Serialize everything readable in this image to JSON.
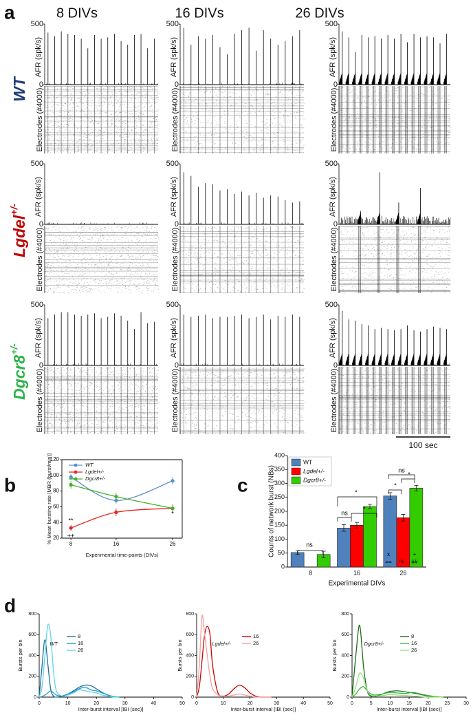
{
  "panel_labels": [
    "a",
    "b",
    "c",
    "d"
  ],
  "panel_a": {
    "columns": [
      "8 DIVs",
      "16 DIVs",
      "26 DIVs"
    ],
    "ylabel": "AFR (spk/s)",
    "raster_label": "Electrodes (#4000)",
    "ylim": [
      0,
      500
    ],
    "yticks": [
      0,
      500
    ],
    "xlim": [
      0,
      205
    ],
    "scale_bar": {
      "value": 100,
      "label": "100 sec"
    },
    "rows": [
      {
        "label": "WT",
        "color": "#1f3b73",
        "panels": [
          {
            "x": [
              6,
              18,
              30,
              42,
              54,
              66,
              78,
              90,
              102,
              114,
              126,
              138,
              150,
              162,
              174,
              186,
              198
            ],
            "values": [
              430,
              400,
              440,
              420,
              410,
              380,
              300,
              410,
              380,
              390,
              420,
              360,
              330,
              410,
              420,
              300,
              380
            ]
          },
          {
            "x": [
              6,
              18,
              30,
              42,
              54,
              66,
              78,
              90,
              102,
              114,
              126,
              138,
              150,
              162,
              174,
              186,
              198
            ],
            "values": [
              470,
              330,
              400,
              380,
              410,
              310,
              250,
              420,
              450,
              470,
              280,
              450,
              380,
              330,
              360,
              400,
              450
            ]
          },
          {
            "x": [
              6,
              18,
              30,
              42,
              54,
              66,
              78,
              90,
              102,
              114,
              126,
              138,
              150,
              162,
              174,
              186,
              198
            ],
            "values": [
              440,
              390,
              270,
              410,
              390,
              400,
              380,
              410,
              380,
              420,
              350,
              420,
              390,
              400,
              390,
              340,
              420
            ]
          }
        ]
      },
      {
        "label": "Lgdel",
        "superscript": "+/-",
        "color": "#c00000",
        "panels": [
          {
            "x": [],
            "values": []
          },
          {
            "x": [
              6,
              18,
              30,
              42,
              54,
              66,
              78,
              90,
              102,
              114,
              126,
              138,
              150,
              162,
              174,
              186,
              198
            ],
            "values": [
              430,
              400,
              310,
              340,
              330,
              280,
              290,
              250,
              270,
              240,
              260,
              220,
              240,
              230,
              200,
              180,
              190
            ]
          },
          {
            "x": [
              40,
              75,
              110,
              150
            ],
            "values": [
              110,
              430,
              180,
              300
            ],
            "baseline": 70
          }
        ]
      },
      {
        "label": "Dgcr8",
        "superscript": "+/-",
        "color": "#2db34a",
        "panels": [
          {
            "x": [
              6,
              18,
              30,
              42,
              54,
              66,
              78,
              90,
              102,
              114,
              126,
              138,
              150,
              162,
              174,
              186,
              198
            ],
            "values": [
              390,
              420,
              440,
              440,
              420,
              410,
              420,
              430,
              390,
              400,
              430,
              410,
              370,
              300,
              440,
              350,
              360
            ]
          },
          {
            "x": [
              6,
              18,
              30,
              42,
              54,
              66,
              78,
              90,
              102,
              114,
              126,
              138,
              150,
              162,
              174,
              186,
              198
            ],
            "values": [
              420,
              400,
              410,
              420,
              390,
              400,
              400,
              410,
              420,
              390,
              400,
              420,
              380,
              410,
              400,
              420,
              400
            ]
          },
          {
            "x": [
              6,
              18,
              30,
              42,
              54,
              66,
              78,
              90,
              102,
              114,
              126,
              138,
              150,
              162,
              174,
              186,
              198
            ],
            "values": [
              450,
              380,
              370,
              340,
              330,
              300,
              310,
              300,
              290,
              300,
              330,
              290,
              280,
              300,
              320,
              310,
              300
            ]
          }
        ]
      }
    ]
  },
  "chart_data": [
    {
      "type": "line",
      "ylabel": "% Mean bursting rate [MBR (burst/min)]",
      "xlabel": "Experimental time-points (DIVs)",
      "x": [
        8,
        16,
        26
      ],
      "xlim": [
        6.4,
        27.7
      ],
      "xticks": [
        8,
        16,
        26
      ],
      "ylim": [
        20,
        120
      ],
      "yticks": [
        20,
        40,
        60,
        80,
        100,
        120
      ],
      "series": [
        {
          "name": "WT",
          "color": "#5b8fd0",
          "values": [
            98,
            68,
            93
          ],
          "errors": [
            4,
            4,
            5
          ]
        },
        {
          "name": "Lgdel+/-",
          "color": "#e8231f",
          "values": [
            33,
            53,
            58
          ],
          "errors": [
            4,
            5,
            5
          ]
        },
        {
          "name": "Dgcr8+/-",
          "color": "#43b02a",
          "values": [
            88,
            73,
            58
          ],
          "errors": [
            5,
            5,
            4
          ]
        }
      ],
      "annotations": [
        "**",
        "++",
        "*"
      ]
    },
    {
      "type": "bar",
      "ylabel": "Counts of network burst (NBs)",
      "xlabel": "Experimental DIVs",
      "categories": [
        "8",
        "16",
        "26"
      ],
      "ylim": [
        0,
        400
      ],
      "yticks": [
        0,
        50,
        100,
        150,
        200,
        250,
        300,
        350,
        400
      ],
      "series": [
        {
          "name": "WT",
          "color": "#4f81bd",
          "values": [
            52,
            140,
            255
          ],
          "errors": [
            6,
            12,
            12
          ]
        },
        {
          "name": "Lgdel+/-",
          "color": "#ff0000",
          "values": [
            null,
            150,
            177
          ],
          "errors": [
            null,
            10,
            12
          ]
        },
        {
          "name": "Dgcr8+/-",
          "color": "#33cc00",
          "values": [
            45,
            217,
            283
          ],
          "errors": [
            12,
            8,
            10
          ]
        }
      ],
      "annotations": [
        "ns",
        "ns",
        "*",
        "*",
        "ns",
        "*",
        "*",
        "x",
        "==",
        "ns",
        "+",
        "##"
      ]
    },
    {
      "type": "line",
      "legend_title": "WT",
      "ylabel": "Bursts per bin",
      "xlabel": "Inter-burst interval [IBI (sec)]",
      "xlim": [
        0,
        50
      ],
      "xticks": [
        0,
        10,
        20,
        30,
        40,
        50
      ],
      "ylim": [
        0,
        800
      ],
      "yticks": [
        0,
        200,
        400,
        600,
        800
      ],
      "x": [
        0,
        1,
        2,
        3,
        4,
        5,
        6,
        8,
        10,
        12,
        14,
        16,
        18,
        20,
        22,
        24,
        26,
        28
      ],
      "series": [
        {
          "name": "8",
          "color": "#1f6e9c",
          "values": [
            0,
            300,
            550,
            320,
            80,
            10,
            0,
            10,
            30,
            60,
            95,
            115,
            110,
            80,
            45,
            20,
            5,
            0
          ]
        },
        {
          "name": "16",
          "color": "#1aa0c8",
          "values": [
            0,
            5,
            20,
            40,
            60,
            40,
            20,
            10,
            30,
            50,
            80,
            95,
            70,
            60,
            40,
            20,
            5,
            0
          ]
        },
        {
          "name": "26",
          "color": "#5fd3e8",
          "values": [
            0,
            100,
            400,
            690,
            600,
            250,
            60,
            10,
            20,
            40,
            70,
            60,
            50,
            40,
            20,
            10,
            0,
            0
          ]
        }
      ]
    },
    {
      "type": "line",
      "legend_title": "Lgdel+/-",
      "ylabel": "Bursts per bin",
      "xlabel": "Inter-burst interval [IBI (sec)]",
      "xlim": [
        0,
        50
      ],
      "xticks": [
        0,
        10,
        20,
        30,
        40,
        50
      ],
      "ylim": [
        0,
        800
      ],
      "yticks": [
        0,
        200,
        400,
        600,
        800
      ],
      "x": [
        0,
        1,
        2,
        3,
        4,
        5,
        6,
        8,
        10,
        12,
        14,
        16,
        18,
        20,
        22,
        24,
        26,
        28
      ],
      "series": [
        {
          "name": "16",
          "color": "#cc0000",
          "values": [
            0,
            100,
            350,
            600,
            680,
            600,
            300,
            40,
            10,
            30,
            80,
            115,
            90,
            40,
            10,
            0,
            0,
            0
          ]
        },
        {
          "name": "26",
          "color": "#f4a0a0",
          "values": [
            0,
            300,
            780,
            600,
            400,
            200,
            80,
            20,
            10,
            10,
            20,
            30,
            20,
            10,
            0,
            0,
            0,
            0
          ]
        }
      ]
    },
    {
      "type": "line",
      "legend_title": "Dgcr8+/-",
      "ylabel": "Bursts per bin",
      "xlabel": "Inter-burst interval [IBI (sec)]",
      "xlim": [
        0,
        30
      ],
      "xticks": [
        0,
        5,
        10,
        15,
        20,
        25,
        30
      ],
      "ylim": [
        0,
        800
      ],
      "yticks": [
        0,
        200,
        400,
        600,
        800
      ],
      "x": [
        0,
        1,
        2,
        3,
        4,
        5,
        6,
        8,
        10,
        12,
        14,
        16,
        18,
        20,
        22,
        24
      ],
      "series": [
        {
          "name": "8",
          "color": "#1a6b1a",
          "values": [
            0,
            400,
            690,
            300,
            60,
            10,
            5,
            30,
            55,
            60,
            50,
            40,
            25,
            10,
            5,
            0
          ]
        },
        {
          "name": "16",
          "color": "#3cb83c",
          "values": [
            0,
            30,
            80,
            100,
            60,
            30,
            20,
            30,
            45,
            40,
            35,
            45,
            30,
            15,
            5,
            0
          ]
        },
        {
          "name": "26",
          "color": "#9be07a",
          "values": [
            0,
            100,
            230,
            180,
            60,
            20,
            10,
            15,
            25,
            20,
            15,
            10,
            5,
            0,
            0,
            0
          ]
        }
      ]
    }
  ]
}
